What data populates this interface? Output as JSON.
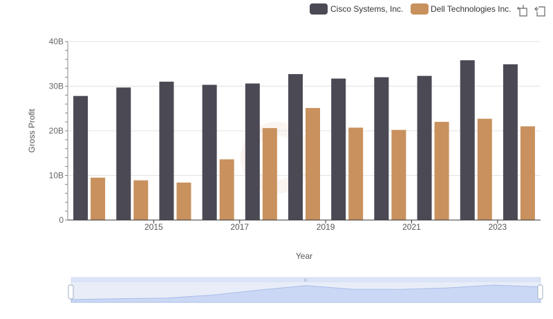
{
  "legend": {
    "items": [
      {
        "label": "Cisco Systems, Inc.",
        "color": "#4a4954"
      },
      {
        "label": "Dell Technologies Inc.",
        "color": "#c8915e"
      }
    ],
    "tools": [
      "zoom-icon",
      "reset-icon"
    ]
  },
  "chart_data": {
    "type": "bar",
    "x": [
      2014,
      2015,
      2016,
      2017,
      2018,
      2019,
      2020,
      2021,
      2022,
      2023,
      2024
    ],
    "x_tick_labels": [
      "2015",
      "2017",
      "2019",
      "2021",
      "2023"
    ],
    "series": [
      {
        "name": "Cisco Systems, Inc.",
        "color": "#4a4954",
        "values": [
          27.8,
          29.7,
          31.0,
          30.3,
          30.6,
          32.7,
          31.7,
          32.0,
          32.3,
          35.8,
          34.9
        ]
      },
      {
        "name": "Dell Technologies Inc.",
        "color": "#c8915e",
        "values": [
          9.5,
          8.9,
          8.4,
          13.6,
          20.6,
          25.1,
          20.7,
          20.2,
          22.0,
          22.7,
          21.0
        ]
      }
    ],
    "xlabel": "Year",
    "ylabel": "Gross Profit",
    "ylim": [
      0,
      40
    ],
    "y_ticks": [
      0,
      10,
      20,
      30,
      40
    ],
    "y_tick_labels": [
      "0",
      "10B",
      "20B",
      "30B",
      "40B"
    ],
    "grid": true,
    "legend_position": "top-right"
  },
  "navigator": {
    "handle_grip": "III",
    "series_color": "#a8bce8"
  }
}
